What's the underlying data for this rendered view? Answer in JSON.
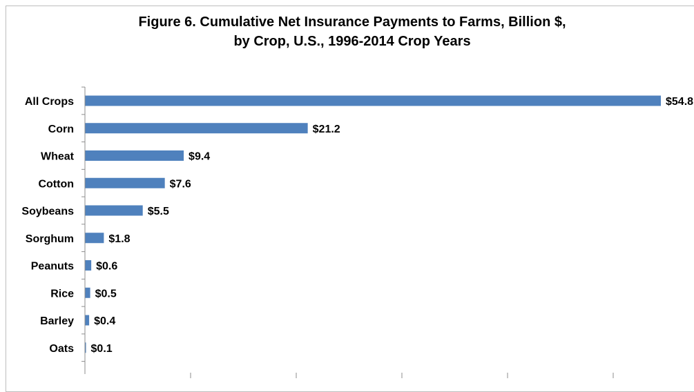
{
  "chart_data": {
    "type": "bar",
    "orientation": "horizontal",
    "title": "Figure 6.  Cumulative Net Insurance Payments to Farms, Billion $,",
    "subtitle": "by Crop, U.S., 1996-2014 Crop Years",
    "xlabel": "",
    "ylabel": "",
    "categories": [
      "All Crops",
      "Corn",
      "Wheat",
      "Cotton",
      "Soybeans",
      "Sorghum",
      "Peanuts",
      "Rice",
      "Barley",
      "Oats"
    ],
    "values": [
      54.8,
      21.2,
      9.4,
      7.6,
      5.5,
      1.8,
      0.6,
      0.5,
      0.4,
      0.1
    ],
    "data_labels": [
      "$54.8",
      "$21.2",
      "$9.4",
      "$7.6",
      "$5.5",
      "$1.8",
      "$0.6",
      "$0.5",
      "$0.4",
      "$0.1"
    ],
    "xlim": [
      0,
      55
    ],
    "x_tick_values": [
      0,
      10,
      20,
      30,
      40,
      50
    ],
    "grid": false,
    "legend": "none",
    "bar_color": "#4f81bd"
  }
}
